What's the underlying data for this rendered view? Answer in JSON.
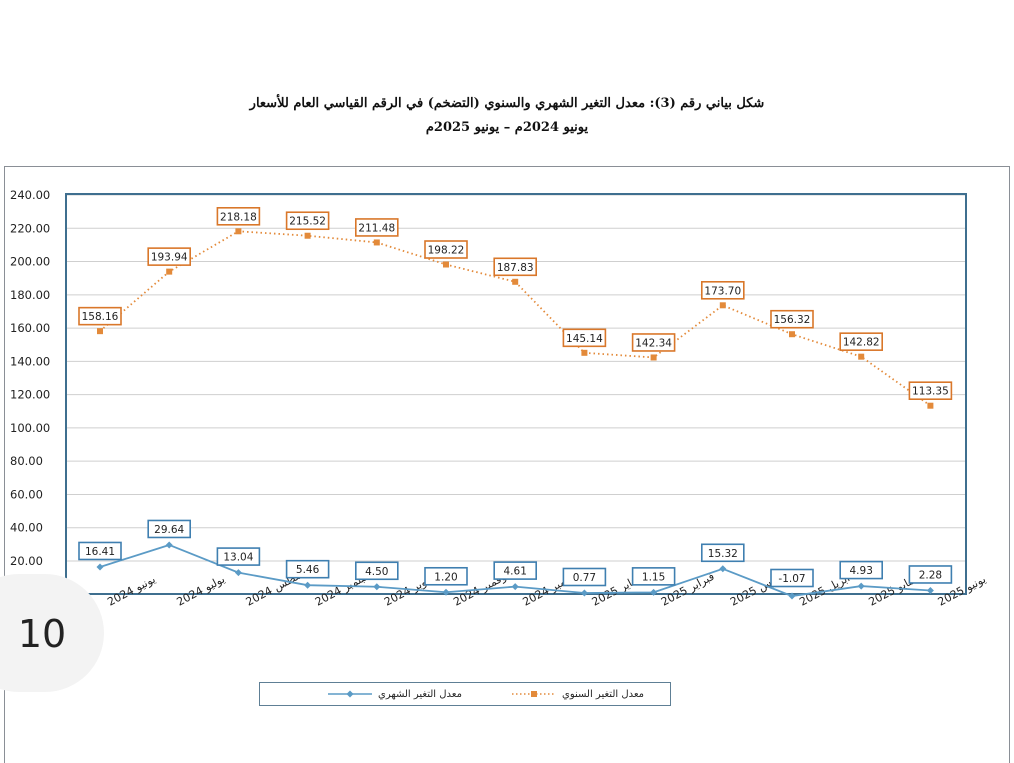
{
  "title": {
    "line1": "شكل بياني رقم (3): معدل التغير الشهري والسنوي (التضخم) في الرقم القياسي العام للأسعار",
    "line2": "يونيو 2024م – يونيو 2025م"
  },
  "page_number": "10",
  "colors": {
    "monthly": "#5b9bc6",
    "annual": "#e38a3a",
    "label_border_monthly": "#3f7fb0",
    "label_border_annual": "#d9772a",
    "plot_border": "#3f6f8f",
    "grid": "#cfcfcf"
  },
  "chart_data": {
    "type": "line",
    "title": "",
    "xlabel": "",
    "ylabel": "",
    "ylim": [
      0,
      240
    ],
    "yticks": [
      "20.00",
      "40.00",
      "60.00",
      "80.00",
      "100.00",
      "120.00",
      "140.00",
      "160.00",
      "180.00",
      "200.00",
      "220.00",
      "240.00"
    ],
    "ytick_values": [
      20,
      40,
      60,
      80,
      100,
      120,
      140,
      160,
      180,
      200,
      220,
      240
    ],
    "grid": true,
    "legend": "bottom",
    "categories": [
      "يونيو 2024",
      "يوليو 2024",
      "أغسطس 2024",
      "سبتمبر 2024",
      "أكتوبر 2024",
      "نوفمبر 2024",
      "ديسمبر 2024",
      "يناير 2025",
      "فبراير 2025",
      "مارس 2025",
      "أبريل 2025",
      "مايو 2025",
      "يونيو 2025"
    ],
    "series": [
      {
        "name": "معدل التغير الشهري",
        "values": [
          16.41,
          29.64,
          13.04,
          5.46,
          4.5,
          1.2,
          4.61,
          0.77,
          1.15,
          15.32,
          -1.07,
          4.93,
          2.28
        ],
        "labels": [
          "16.41",
          "29.64",
          "13.04",
          "5.46",
          "4.50",
          "1.20",
          "4.61",
          "0.77",
          "1.15",
          "15.32",
          "-1.07",
          "4.93",
          "2.28"
        ]
      },
      {
        "name": "معدل التغير السنوي",
        "values": [
          158.16,
          193.94,
          218.18,
          215.52,
          211.48,
          198.22,
          187.83,
          145.14,
          142.34,
          173.7,
          156.32,
          142.82,
          113.35
        ],
        "labels": [
          "158.16",
          "193.94",
          "218.18",
          "215.52",
          "211.48",
          "198.22",
          "187.83",
          "145.14",
          "142.34",
          "173.70",
          "156.32",
          "142.82",
          "113.35"
        ]
      }
    ]
  }
}
